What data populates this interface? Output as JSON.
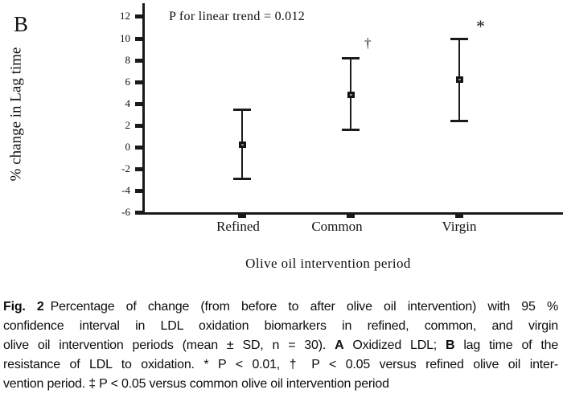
{
  "figure": {
    "panel_label": "B",
    "annotation": "P for linear trend = 0.012",
    "y_axis_label": "% change in Lag time",
    "x_axis_label": "Olive oil intervention period"
  },
  "chart_data": {
    "type": "scatter",
    "subtype": "mean-with-error-bars",
    "panel": "B",
    "annotation": "P for linear trend = 0.012",
    "categories": [
      "Refined",
      "Common",
      "Virgin"
    ],
    "series": [
      {
        "name": "% change in Lag time",
        "marker": "square",
        "means": [
          0.2,
          4.8,
          6.2
        ],
        "ci_low": [
          -2.9,
          1.6,
          2.4
        ],
        "ci_high": [
          3.5,
          8.2,
          10.0
        ],
        "sig_symbols": [
          "",
          "†",
          "*"
        ]
      }
    ],
    "xlabel": "Olive oil intervention period",
    "ylabel": "% change in Lag time",
    "ylim": [
      -6,
      13
    ],
    "yticks": [
      12,
      10,
      8,
      6,
      4,
      2,
      0,
      -2,
      -4,
      -6
    ],
    "grid": false,
    "legend": null
  },
  "caption": {
    "lines": [
      {
        "justify": true,
        "segments": [
          {
            "t": "Fig. 2",
            "b": true,
            "gap": true
          },
          {
            "t": "Percentage of change (from before to after olive oil intervention) with 95 %",
            "b": false
          }
        ]
      },
      {
        "justify": true,
        "segments": [
          {
            "t": "confidence interval in LDL oxidation biomarkers in refined, common, and virgin",
            "b": false
          }
        ]
      },
      {
        "justify": true,
        "segments": [
          {
            "t": "olive oil intervention periods (mean ± SD, n = 30). ",
            "b": false
          },
          {
            "t": "A",
            "b": true
          },
          {
            "t": " Oxidized LDL; ",
            "b": false
          },
          {
            "t": "B",
            "b": true
          },
          {
            "t": " lag time of the",
            "b": false
          }
        ]
      },
      {
        "justify": true,
        "segments": [
          {
            "t": "resistance of LDL to oxidation. * P < 0.01, † P < 0.05 versus refined olive oil inter-",
            "b": false
          }
        ]
      },
      {
        "justify": false,
        "segments": [
          {
            "t": "vention period. ‡ P < 0.05 versus common olive oil intervention period",
            "b": false
          }
        ]
      }
    ]
  },
  "colors": {
    "ink": "#1a1a1a",
    "background": "#ffffff"
  }
}
